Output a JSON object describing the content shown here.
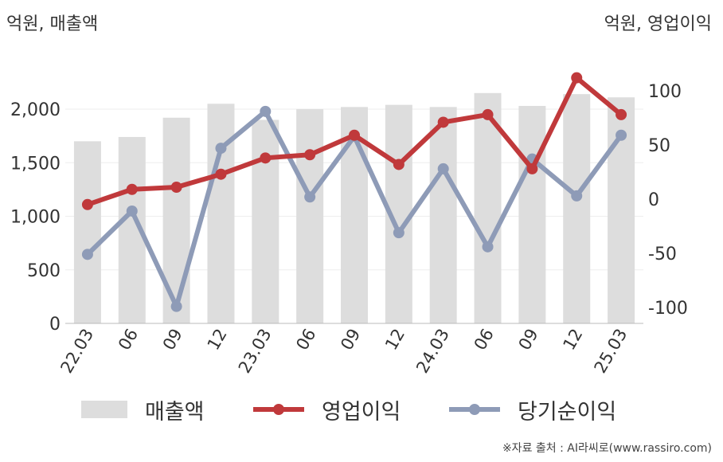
{
  "units": {
    "left": "억원, 매출액",
    "right": "억원, 영업이익"
  },
  "source": "※자료 출처 : AI라씨로(www.rassiro.com)",
  "colors": {
    "sales": "#dddddd",
    "operating": "#c0393b",
    "net": "#8e9bb7",
    "grid": "#eeeeee",
    "axis": "#bbbbbb",
    "text": "#333333"
  },
  "legend": [
    {
      "label": "매출액",
      "kind": "bar"
    },
    {
      "label": "영업이익",
      "kind": "line-operating"
    },
    {
      "label": "당기순이익",
      "kind": "line-net"
    }
  ],
  "chart_data": {
    "type": "bar",
    "categories": [
      "22.03",
      "06",
      "09",
      "12",
      "23.03",
      "06",
      "09",
      "12",
      "24.03",
      "06",
      "09",
      "12",
      "25.03"
    ],
    "series": [
      {
        "name": "매출액",
        "type": "bar",
        "axis": "left",
        "values": [
          1700,
          1740,
          1920,
          2050,
          1900,
          2000,
          2020,
          2040,
          2020,
          2150,
          2030,
          2140,
          2110
        ]
      },
      {
        "name": "영업이익",
        "type": "line",
        "axis": "right",
        "values": [
          -5,
          9,
          11,
          23,
          38,
          41,
          59,
          32,
          71,
          78,
          28,
          112,
          78
        ]
      },
      {
        "name": "당기순이익",
        "type": "line",
        "axis": "right",
        "values": [
          -51,
          -11,
          -99,
          47,
          81,
          2,
          58,
          -31,
          28,
          -44,
          37,
          3,
          59
        ]
      }
    ],
    "left_axis": {
      "ylim": [
        0,
        2500
      ],
      "ticks": [
        0,
        500,
        1000,
        1500,
        2000
      ],
      "tick_labels": [
        "0",
        "500",
        "1,000",
        "1,500",
        "2,000"
      ]
    },
    "right_axis": {
      "ylim": [
        -115,
        115
      ],
      "ticks": [
        -100,
        -50,
        0,
        50,
        100
      ],
      "tick_labels": [
        "-100",
        "-50",
        "0",
        "50",
        "100"
      ]
    },
    "grid": true,
    "legend_position": "bottom"
  }
}
